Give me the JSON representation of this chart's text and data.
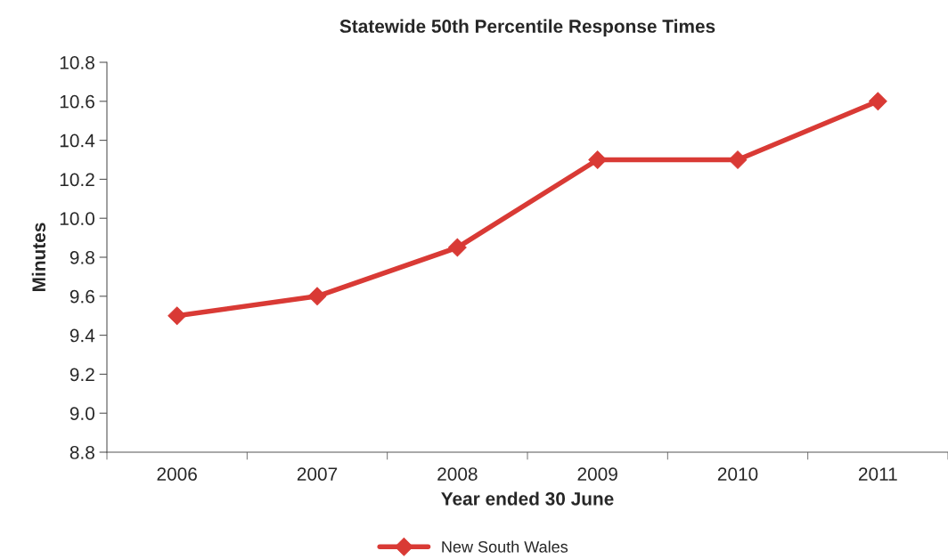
{
  "chart_data": {
    "type": "line",
    "title": "Statewide 50th Percentile Response Times",
    "xlabel": "Year ended 30 June",
    "ylabel": "Minutes",
    "categories": [
      "2006",
      "2007",
      "2008",
      "2009",
      "2010",
      "2011"
    ],
    "series": [
      {
        "name": "New South Wales",
        "color": "#d93a35",
        "values": [
          9.5,
          9.6,
          9.85,
          10.3,
          10.3,
          10.6
        ]
      }
    ],
    "ylim": [
      8.8,
      10.8
    ],
    "yticks": [
      {
        "value": 8.8,
        "label": "8.8"
      },
      {
        "value": 9.0,
        "label": "9.0"
      },
      {
        "value": 9.2,
        "label": "9.2"
      },
      {
        "value": 9.4,
        "label": "9.4"
      },
      {
        "value": 9.6,
        "label": "9.6"
      },
      {
        "value": 9.8,
        "label": "9.8"
      },
      {
        "value": 10.0,
        "label": "10.0"
      },
      {
        "value": 10.2,
        "label": "10.2"
      },
      {
        "value": 10.4,
        "label": "10.4"
      },
      {
        "value": 10.6,
        "label": "10.6"
      },
      {
        "value": 10.8,
        "label": "10.8"
      }
    ],
    "grid": false,
    "legend": "bottom",
    "marker": "diamond",
    "line_style": "solid"
  }
}
